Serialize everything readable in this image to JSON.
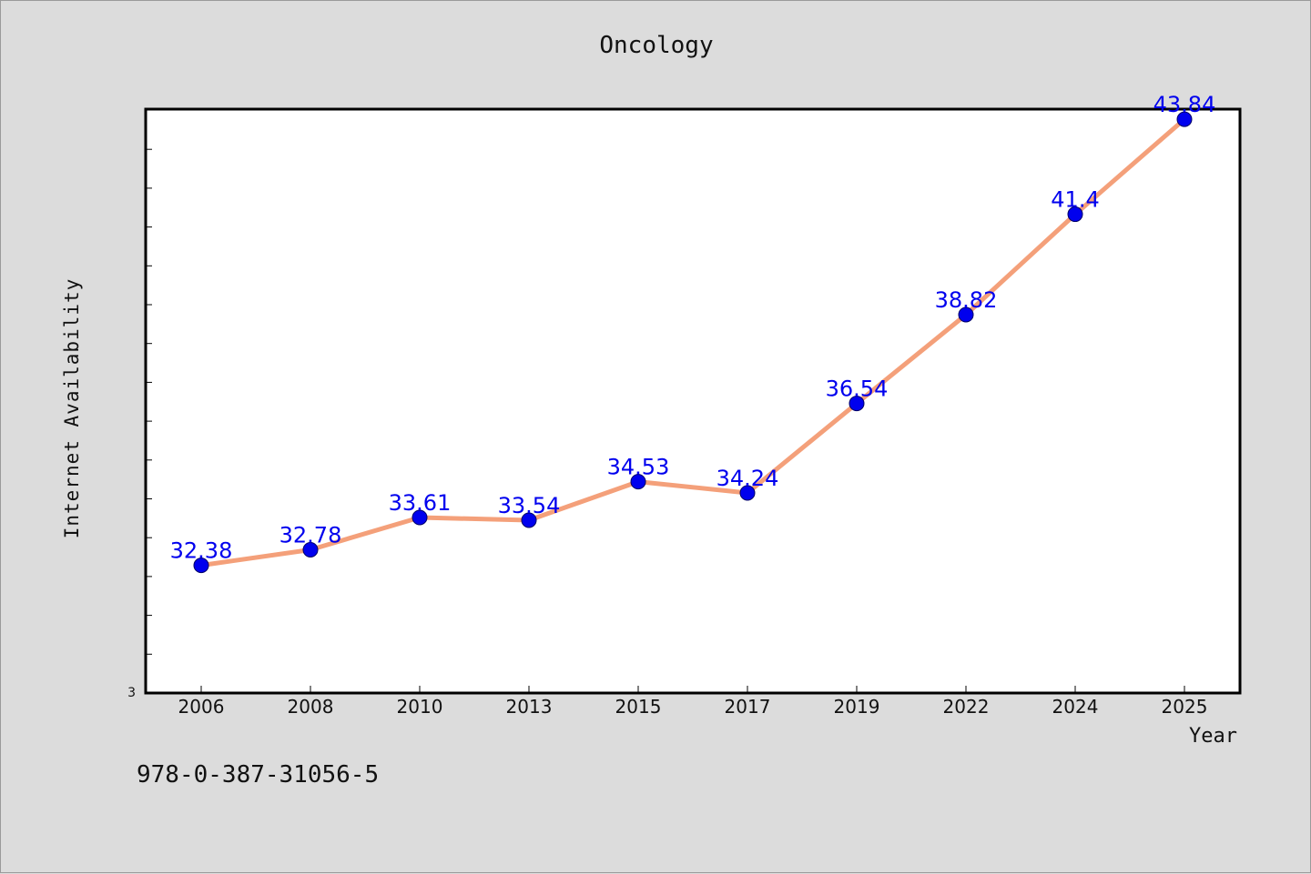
{
  "chart_data": {
    "type": "line",
    "title": "Oncology",
    "xlabel": "Year",
    "ylabel": "Internet Availability",
    "categories": [
      "2006",
      "2008",
      "2010",
      "2013",
      "2015",
      "2017",
      "2019",
      "2022",
      "2024",
      "2025"
    ],
    "values": [
      32.38,
      32.78,
      33.61,
      33.54,
      34.53,
      34.24,
      36.54,
      38.82,
      41.4,
      43.84
    ],
    "data_labels": [
      "32.38",
      "32.78",
      "33.61",
      "33.54",
      "34.53",
      "34.24",
      "36.54",
      "38.82",
      "41.4",
      "43.84"
    ],
    "y_min_label": "3",
    "ylim": [
      29.1,
      44.1
    ],
    "grid": false,
    "legend": "none",
    "line_color": "#f4a07a",
    "marker_color": "#0000ee",
    "label_color": "#0000ee"
  },
  "footnote": "978-0-387-31056-5"
}
